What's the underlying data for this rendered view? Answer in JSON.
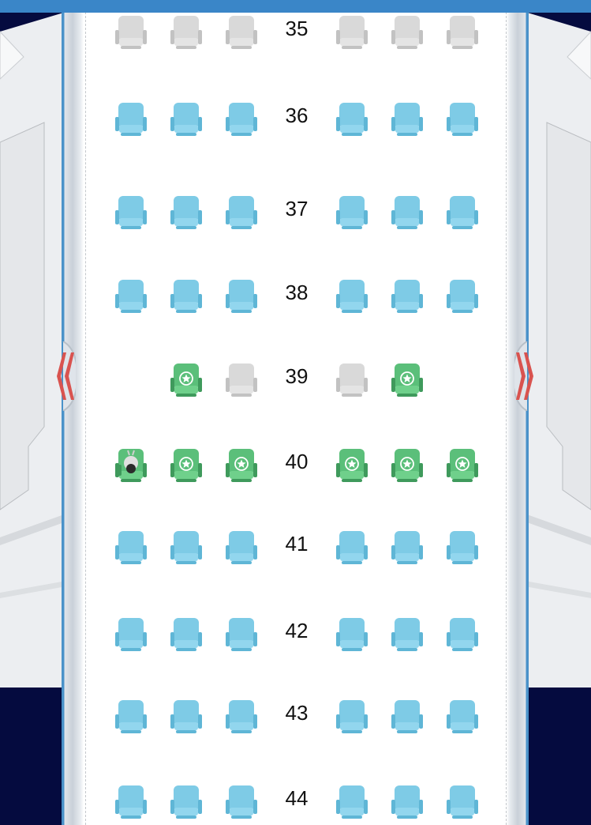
{
  "seat_map": {
    "status_colors": {
      "available": "#7ecbe6",
      "occupied": "#d9d9d9",
      "premium": "#5bbf7a",
      "selected": "#5bbf7a"
    },
    "exit_left_icon": "double-chevron-left-icon",
    "exit_right_icon": "double-chevron-right-icon",
    "premium_icon": "star-circle-icon",
    "selected_icon": "passenger-icon",
    "rows": [
      {
        "number": "35",
        "seats": [
          "occupied",
          "occupied",
          "occupied",
          "occupied",
          "occupied",
          "occupied"
        ]
      },
      {
        "number": "36",
        "seats": [
          "available",
          "available",
          "available",
          "available",
          "available",
          "available"
        ]
      },
      {
        "number": "37",
        "seats": [
          "available",
          "available",
          "available",
          "available",
          "available",
          "available"
        ]
      },
      {
        "number": "38",
        "seats": [
          "available",
          "available",
          "available",
          "available",
          "available",
          "available"
        ]
      },
      {
        "number": "39",
        "seats": [
          "none",
          "premium",
          "occupied",
          "occupied",
          "premium",
          "none"
        ]
      },
      {
        "number": "40",
        "seats": [
          "selected",
          "premium",
          "premium",
          "premium",
          "premium",
          "premium"
        ]
      },
      {
        "number": "41",
        "seats": [
          "available",
          "available",
          "available",
          "available",
          "available",
          "available"
        ]
      },
      {
        "number": "42",
        "seats": [
          "available",
          "available",
          "available",
          "available",
          "available",
          "available"
        ]
      },
      {
        "number": "43",
        "seats": [
          "available",
          "available",
          "available",
          "available",
          "available",
          "available"
        ]
      },
      {
        "number": "44",
        "seats": [
          "available",
          "available",
          "available",
          "available",
          "available",
          "available"
        ]
      }
    ]
  }
}
